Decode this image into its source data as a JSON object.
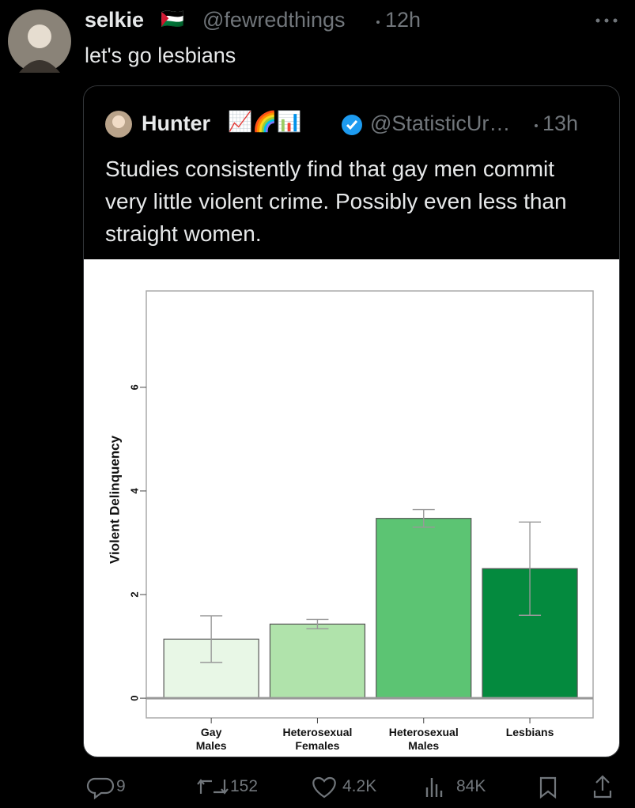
{
  "tweet": {
    "name": "selkie",
    "flag": "🇵🇸",
    "handle": "@fewredthings",
    "time": "12h",
    "text": "let's go lesbians",
    "quote": {
      "name": "Hunter",
      "emojis": "📈🌈📊",
      "handle": "@StatisticUr…",
      "time": "13h",
      "text": "Studies consistently find that gay men commit very little violent crime. Possibly even less than straight women."
    },
    "stats": {
      "replies": "9",
      "retweets": "152",
      "likes": "4.2K",
      "views": "84K"
    }
  },
  "chart_data": {
    "type": "bar",
    "ylabel": "Violent Delinquency",
    "categories": [
      "Gay Males",
      "Heterosexual Females",
      "Heterosexual Males",
      "Lesbians"
    ],
    "values": [
      1.14,
      1.43,
      3.47,
      2.5
    ],
    "errors": [
      0.45,
      0.09,
      0.17,
      0.9
    ],
    "colors": [
      "#e8f7e6",
      "#b0e3ab",
      "#5cc473",
      "#048a3e"
    ],
    "ylim": [
      -0.38,
      7.86
    ],
    "yticks": [
      0,
      2,
      4,
      6
    ]
  }
}
